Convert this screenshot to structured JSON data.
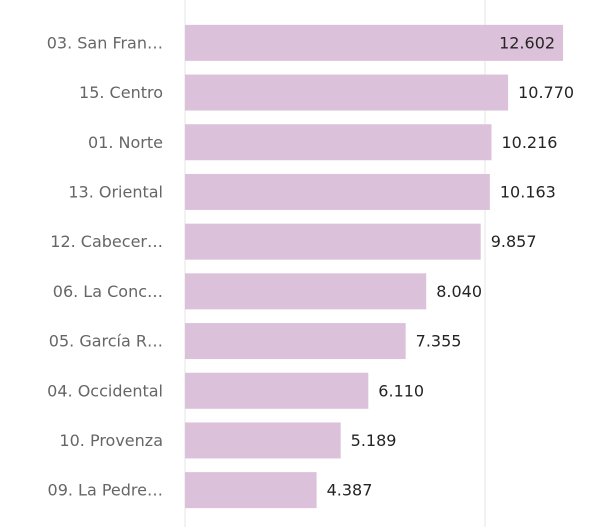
{
  "chart_data": {
    "type": "bar",
    "orientation": "horizontal",
    "categories": [
      "03. San Fran…",
      "15. Centro",
      "01. Norte",
      "13. Oriental",
      "12. Cabecer…",
      "06. La Conc…",
      "05. García R…",
      "04. Occidental",
      "10. Provenza",
      "09. La Pedre…"
    ],
    "values": [
      12602,
      10770,
      10216,
      10163,
      9857,
      8040,
      7355,
      6110,
      5189,
      4387
    ],
    "value_labels": [
      "12.602",
      "10.770",
      "10.216",
      "10.163",
      "9.857",
      "8.040",
      "7.355",
      "6.110",
      "5.189",
      "4.387"
    ],
    "color": "#dcc1da",
    "xlim": [
      0,
      13000
    ],
    "xticks": [
      0,
      10000
    ],
    "grid": true
  }
}
